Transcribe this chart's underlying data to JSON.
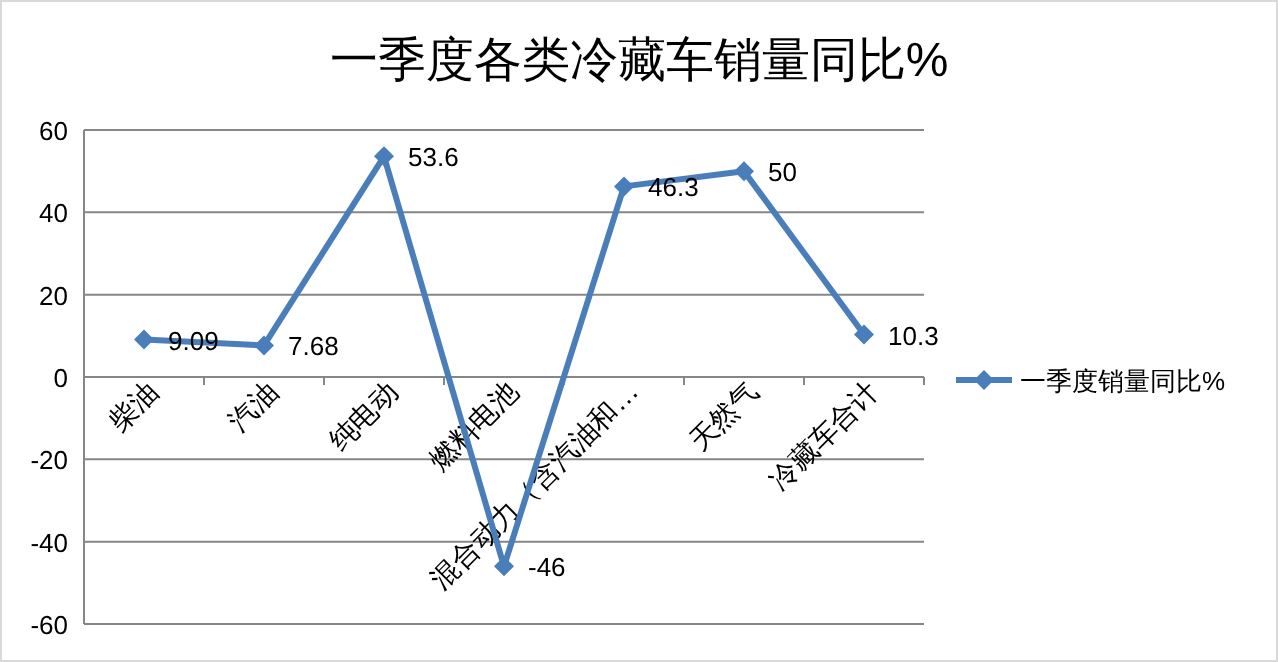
{
  "chart_data": {
    "type": "line",
    "title": "一季度各类冷藏车销量同比%",
    "categories": [
      "柴油",
      "汽油",
      "纯电动",
      "燃料电池",
      "混合动力（含汽油和…",
      "天然气",
      "冷藏车合计"
    ],
    "series": [
      {
        "name": "一季度销量同比%",
        "color": "#4a7ebb",
        "values": [
          9.09,
          7.68,
          53.6,
          -46,
          46.3,
          50,
          10.3
        ]
      }
    ],
    "ylim": [
      -60,
      60
    ],
    "yticks": [
      -60,
      -40,
      -20,
      0,
      20,
      40,
      60
    ],
    "grid": "y",
    "legend": "right",
    "marker": "diamond",
    "line_style": "solid",
    "data_labels": true
  }
}
